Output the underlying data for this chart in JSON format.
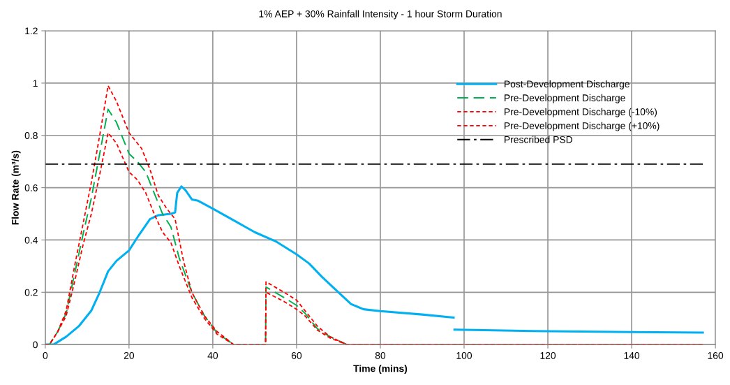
{
  "chart_data": {
    "type": "line",
    "title": "1% AEP + 30% Rainfall Intensity - 1 hour Storm Duration",
    "xlabel": "Time (mins)",
    "ylabel": "Flow Rate (m³/s)",
    "xlim": [
      0,
      160
    ],
    "xticks": [
      0,
      20,
      40,
      60,
      80,
      100,
      120,
      140,
      160
    ],
    "ylim": [
      0,
      1.2
    ],
    "yticks": [
      {
        "value": 0,
        "label": "0"
      },
      {
        "value": 0.2,
        "label": "0.2"
      },
      {
        "value": 0.4,
        "label": "0.4"
      },
      {
        "value": 0.6,
        "label": "0.6"
      },
      {
        "value": 0.8,
        "label": "0.8"
      },
      {
        "value": 1,
        "label": "1"
      },
      {
        "value": 1.2,
        "label": "1.2"
      }
    ],
    "grid": true,
    "legend": "top right",
    "marker": "none",
    "series": [
      {
        "name": "Post-Development Discharge",
        "color": "#00b0f0",
        "line_style": "solid",
        "x": [
          0,
          2,
          5,
          8,
          11,
          13,
          15,
          17,
          20,
          22,
          25,
          27,
          30,
          31,
          31.5,
          32.5,
          33.5,
          35,
          36.5,
          40,
          45,
          50,
          55,
          60,
          63,
          66,
          70,
          73,
          76,
          80,
          90,
          97.5,
          97.6,
          97.7,
          120,
          140,
          157
        ],
        "values": [
          0,
          0,
          0.03,
          0.07,
          0.13,
          0.2,
          0.28,
          0.32,
          0.36,
          0.41,
          0.48,
          0.495,
          0.5,
          0.505,
          0.58,
          0.605,
          0.59,
          0.555,
          0.55,
          0.52,
          0.475,
          0.43,
          0.395,
          0.345,
          0.31,
          0.26,
          0.2,
          0.155,
          0.135,
          0.128,
          0.115,
          0.103,
          null,
          0.057,
          0.051,
          0.048,
          0.046
        ]
      },
      {
        "name": "Pre-Development Discharge",
        "color": "#00b050",
        "line_style": "dashed",
        "x": [
          0,
          1,
          3,
          5,
          7,
          9,
          11,
          13,
          15,
          17,
          20,
          22,
          24,
          26,
          28,
          30,
          32,
          35,
          38,
          41,
          45,
          52.6,
          52.7,
          57,
          60,
          62,
          65,
          68,
          72,
          157
        ],
        "values": [
          0,
          0,
          0.05,
          0.12,
          0.27,
          0.42,
          0.56,
          0.73,
          0.9,
          0.85,
          0.73,
          0.7,
          0.66,
          0.58,
          0.5,
          0.45,
          0.33,
          0.2,
          0.11,
          0.045,
          0,
          0,
          0.22,
          0.18,
          0.15,
          0.12,
          0.06,
          0.03,
          0,
          0
        ]
      },
      {
        "name": "Pre-Development Discharge (-10%)",
        "color": "#ff0000",
        "line_style": "dotted",
        "x": [
          0,
          1,
          3,
          5,
          7,
          9,
          11,
          13,
          15,
          17,
          20,
          22,
          24,
          26,
          28,
          30,
          32,
          35,
          38,
          41,
          45,
          52.6,
          52.7,
          57,
          60,
          62,
          65,
          68,
          72,
          157
        ],
        "values": [
          0,
          0,
          0.05,
          0.11,
          0.24,
          0.38,
          0.5,
          0.65,
          0.81,
          0.77,
          0.66,
          0.63,
          0.58,
          0.5,
          0.43,
          0.39,
          0.3,
          0.18,
          0.1,
          0.04,
          0,
          0,
          0.2,
          0.165,
          0.135,
          0.11,
          0.055,
          0.025,
          0,
          0
        ]
      },
      {
        "name": "Pre-Development Discharge (+10%)",
        "color": "#ff0000",
        "line_style": "dotted",
        "x": [
          0,
          1,
          3,
          5,
          7,
          9,
          11,
          13,
          15,
          17,
          20,
          22,
          23,
          25,
          27,
          29,
          31,
          33,
          35,
          38,
          41,
          45,
          52.6,
          52.7,
          57,
          60,
          62,
          65,
          68,
          72,
          157
        ],
        "values": [
          0,
          0,
          0.05,
          0.13,
          0.3,
          0.46,
          0.62,
          0.8,
          0.99,
          0.93,
          0.81,
          0.77,
          0.75,
          0.67,
          0.57,
          0.52,
          0.48,
          0.32,
          0.2,
          0.11,
          0.05,
          0,
          0,
          0.24,
          0.2,
          0.17,
          0.13,
          0.07,
          0.03,
          0,
          0
        ]
      },
      {
        "name": "Prescribed PSD",
        "color": "#000000",
        "line_style": "dashdot",
        "x": [
          0,
          157
        ],
        "values": [
          0.69,
          0.69
        ]
      }
    ]
  }
}
